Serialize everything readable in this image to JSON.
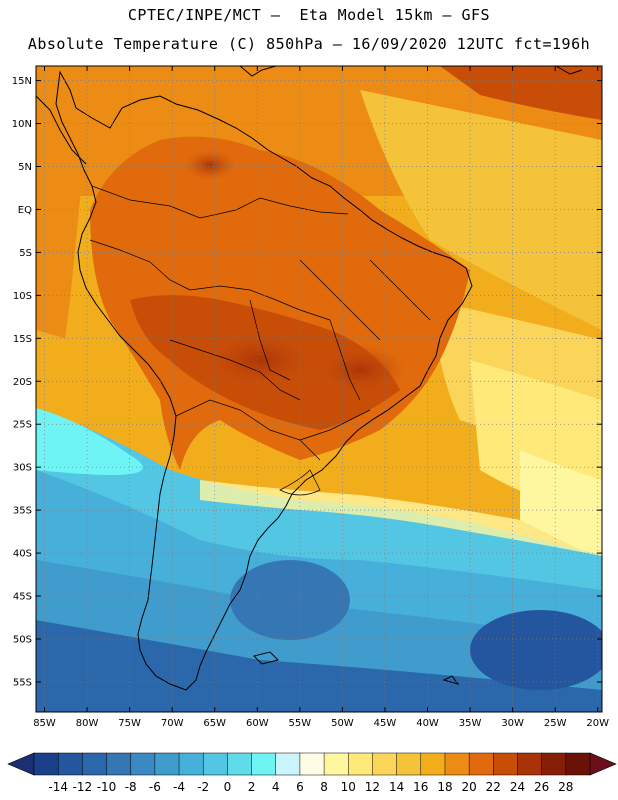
{
  "header": {
    "line1": "CPTEC/INPE/MCT –  Eta Model 15km – GFS",
    "line2": "Absolute Temperature (C) 850hPa – 16/09/2020 12UTC fct=196h"
  },
  "map": {
    "lat_labels": [
      "15N",
      "10N",
      "5N",
      "EQ",
      "5S",
      "10S",
      "15S",
      "20S",
      "25S",
      "30S",
      "35S",
      "40S",
      "45S",
      "50S",
      "55S"
    ],
    "lat_values": [
      15,
      10,
      5,
      0,
      -5,
      -10,
      -15,
      -20,
      -25,
      -30,
      -35,
      -40,
      -45,
      -50,
      -55
    ],
    "lon_labels": [
      "85W",
      "80W",
      "75W",
      "70W",
      "65W",
      "60W",
      "55W",
      "50W",
      "45W",
      "40W",
      "35W",
      "30W",
      "25W",
      "20W"
    ],
    "lon_values": [
      -85,
      -80,
      -75,
      -70,
      -65,
      -60,
      -55,
      -50,
      -45,
      -40,
      -35,
      -30,
      -25,
      -20
    ]
  },
  "colorbar": {
    "labels": [
      "-14",
      "-12",
      "-10",
      "-8",
      "-6",
      "-4",
      "-2",
      "0",
      "2",
      "4",
      "6",
      "8",
      "10",
      "12",
      "14",
      "16",
      "18",
      "20",
      "22",
      "24",
      "26",
      "28"
    ],
    "colors": [
      "#1c3f8c",
      "#24569f",
      "#2b67ab",
      "#3577b5",
      "#3a89c2",
      "#3f9ccd",
      "#47b0da",
      "#52c6e2",
      "#5fdbe9",
      "#6ef4f4",
      "#c9f4fb",
      "#fffbe5",
      "#fff6a0",
      "#ffe978",
      "#fbd55a",
      "#f5c33a",
      "#f2ad1c",
      "#ec8c14",
      "#e06a0c",
      "#c84e08",
      "#a93308",
      "#871e08",
      "#6b1206"
    ],
    "low_cap_color": "#1c2f73",
    "high_cap_color": "#6b0f1a"
  }
}
